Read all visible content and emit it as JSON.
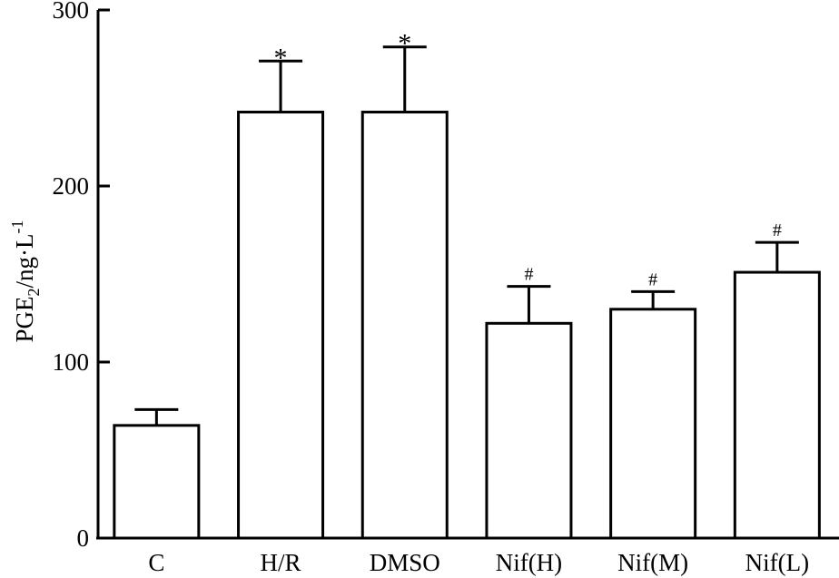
{
  "chart_data": {
    "type": "bar",
    "title": "",
    "xlabel": "",
    "ylabel": {
      "base": "PGE",
      "base_sub": "2",
      "unit": "/ng·L",
      "unit_sup": "-1"
    },
    "ylim": [
      0,
      300
    ],
    "yticks": [
      0,
      100,
      200,
      300
    ],
    "grid": false,
    "legend": "none",
    "categories": [
      "C",
      "H/R",
      "DMSO",
      "Nif(H)",
      "Nif(M)",
      "Nif(L)"
    ],
    "values": [
      64,
      242,
      242,
      122,
      130,
      151
    ],
    "errors": [
      9,
      29,
      37,
      21,
      10,
      17
    ],
    "annotations": [
      "",
      "*",
      "*",
      "#",
      "#",
      "#"
    ]
  }
}
